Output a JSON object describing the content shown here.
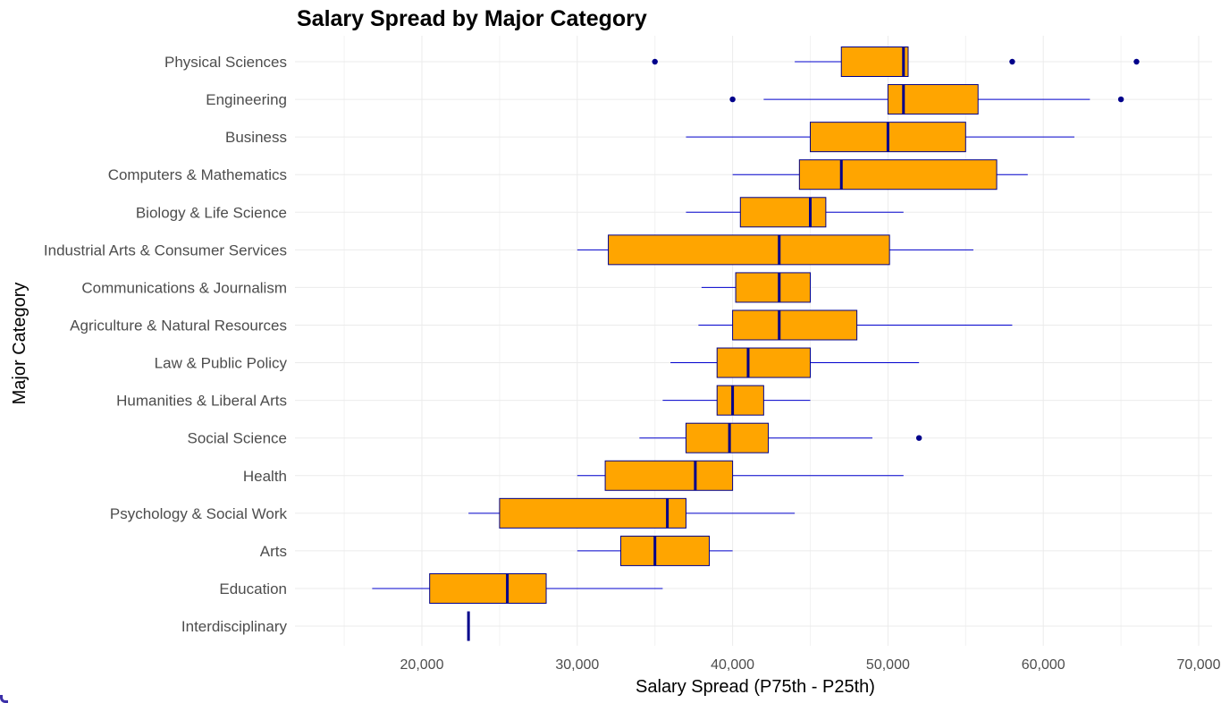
{
  "chart_data": {
    "type": "box",
    "title": "Salary Spread by Major Category",
    "xlabel": "Salary Spread (P75th - P25th)",
    "ylabel": "Major Category",
    "xlim": [
      12500,
      70000
    ],
    "x_ticks": [
      20000,
      30000,
      40000,
      50000,
      60000,
      70000
    ],
    "x_tick_labels": [
      "20,000",
      "30,000",
      "40,000",
      "50,000",
      "60,000",
      "70,000"
    ],
    "grid": true,
    "colors": {
      "box_fill": "#FFA500",
      "box_stroke": "#00008B",
      "median": "#00008B",
      "whisker": "#0000CD",
      "outlier": "#00008B"
    },
    "categories": [
      {
        "name": "Physical Sciences",
        "whisker_low": 44000,
        "q1": 47000,
        "median": 51000,
        "q3": 51300,
        "whisker_high": 51300,
        "outliers": [
          35000,
          58000,
          66000
        ]
      },
      {
        "name": "Engineering",
        "whisker_low": 42000,
        "q1": 50000,
        "median": 51000,
        "q3": 55800,
        "whisker_high": 63000,
        "outliers": [
          40000,
          65000
        ]
      },
      {
        "name": "Business",
        "whisker_low": 37000,
        "q1": 45000,
        "median": 50000,
        "q3": 55000,
        "whisker_high": 62000,
        "outliers": []
      },
      {
        "name": "Computers & Mathematics",
        "whisker_low": 40000,
        "q1": 44300,
        "median": 47000,
        "q3": 57000,
        "whisker_high": 59000,
        "outliers": []
      },
      {
        "name": "Biology & Life Science",
        "whisker_low": 37000,
        "q1": 40500,
        "median": 45000,
        "q3": 46000,
        "whisker_high": 51000,
        "outliers": []
      },
      {
        "name": "Industrial Arts & Consumer Services",
        "whisker_low": 30000,
        "q1": 32000,
        "median": 43000,
        "q3": 50100,
        "whisker_high": 55500,
        "outliers": []
      },
      {
        "name": "Communications & Journalism",
        "whisker_low": 38000,
        "q1": 40200,
        "median": 43000,
        "q3": 45000,
        "whisker_high": 45000,
        "outliers": []
      },
      {
        "name": "Agriculture & Natural Resources",
        "whisker_low": 37800,
        "q1": 40000,
        "median": 43000,
        "q3": 48000,
        "whisker_high": 58000,
        "outliers": []
      },
      {
        "name": "Law & Public Policy",
        "whisker_low": 36000,
        "q1": 39000,
        "median": 41000,
        "q3": 45000,
        "whisker_high": 52000,
        "outliers": []
      },
      {
        "name": "Humanities & Liberal Arts",
        "whisker_low": 35500,
        "q1": 39000,
        "median": 40000,
        "q3": 42000,
        "whisker_high": 45000,
        "outliers": []
      },
      {
        "name": "Social Science",
        "whisker_low": 34000,
        "q1": 37000,
        "median": 39800,
        "q3": 42300,
        "whisker_high": 49000,
        "outliers": [
          52000
        ]
      },
      {
        "name": "Health",
        "whisker_low": 30000,
        "q1": 31800,
        "median": 37600,
        "q3": 40000,
        "whisker_high": 51000,
        "outliers": []
      },
      {
        "name": "Psychology & Social Work",
        "whisker_low": 23000,
        "q1": 25000,
        "median": 35800,
        "q3": 37000,
        "whisker_high": 44000,
        "outliers": []
      },
      {
        "name": "Arts",
        "whisker_low": 30000,
        "q1": 32800,
        "median": 35000,
        "q3": 38500,
        "whisker_high": 40000,
        "outliers": []
      },
      {
        "name": "Education",
        "whisker_low": 16800,
        "q1": 20500,
        "median": 25500,
        "q3": 28000,
        "whisker_high": 35500,
        "outliers": []
      },
      {
        "name": "Interdisciplinary",
        "whisker_low": 23000,
        "q1": 23000,
        "median": 23000,
        "q3": 23000,
        "whisker_high": 23000,
        "outliers": []
      }
    ]
  }
}
